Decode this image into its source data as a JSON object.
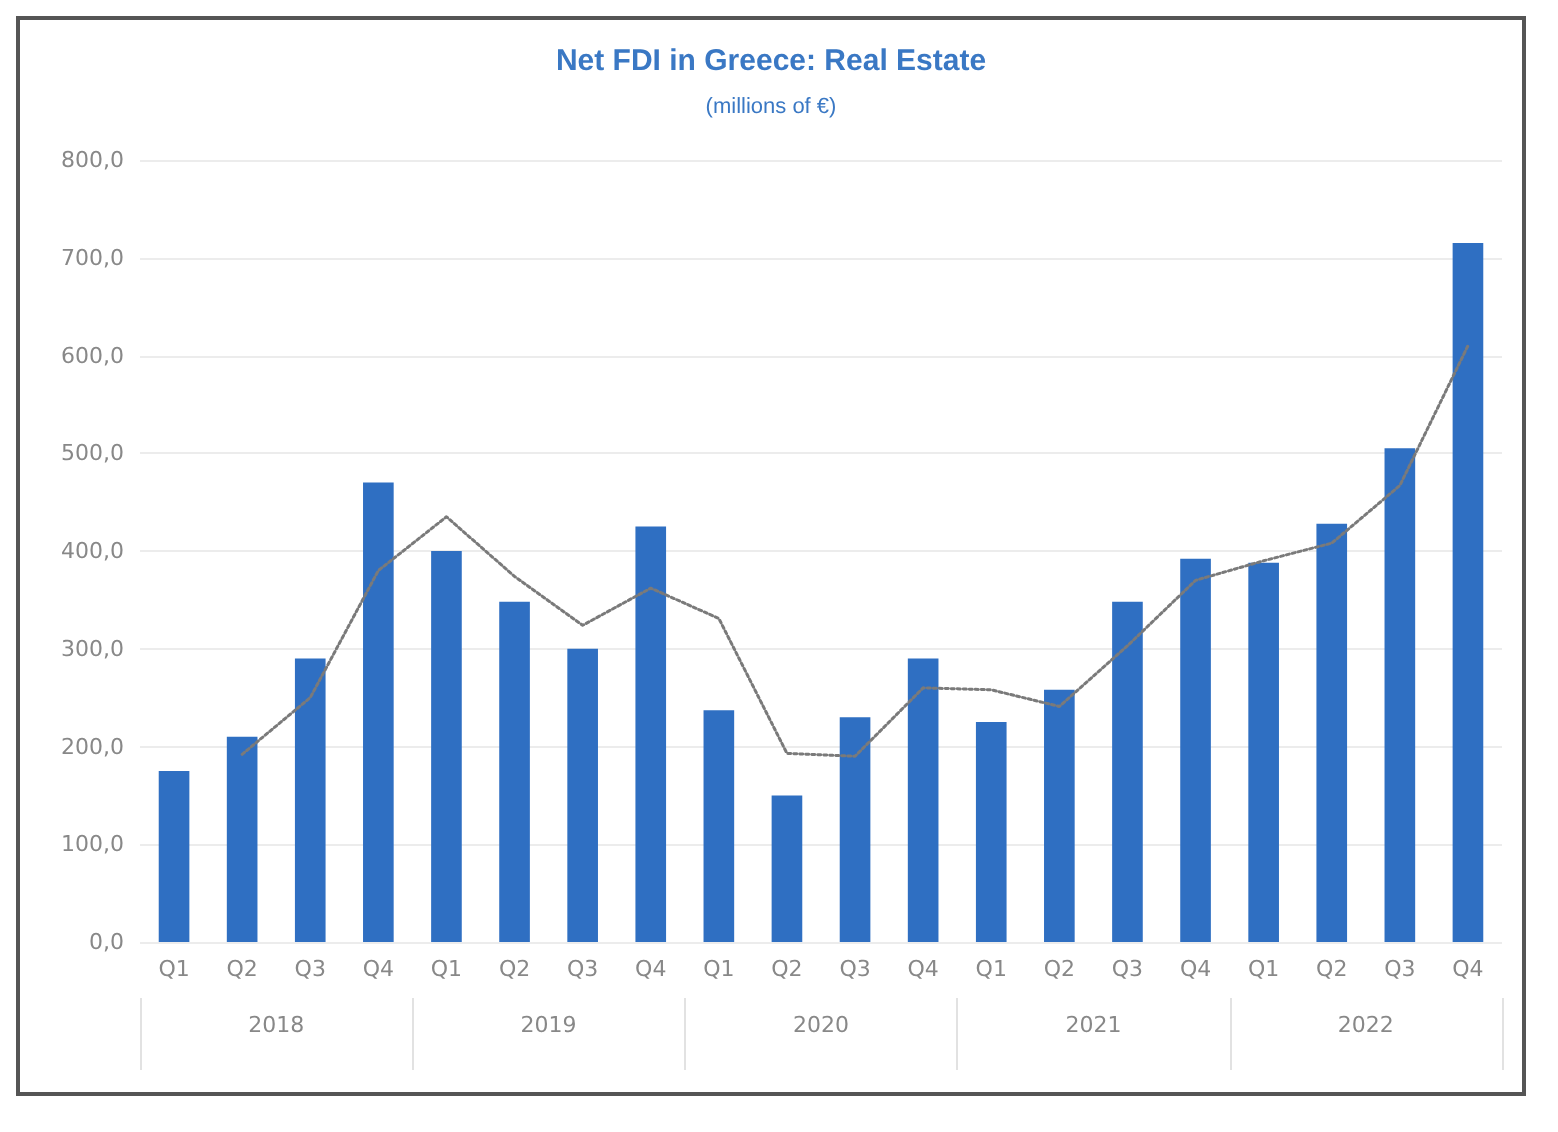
{
  "chart_data": {
    "type": "bar",
    "title": "Net FDI in Greece: Real Estate",
    "subtitle": "(millions of €)",
    "categories": [
      "Q1",
      "Q2",
      "Q3",
      "Q4",
      "Q1",
      "Q2",
      "Q3",
      "Q4",
      "Q1",
      "Q2",
      "Q3",
      "Q4",
      "Q1",
      "Q2",
      "Q3",
      "Q4",
      "Q1",
      "Q2",
      "Q3",
      "Q4"
    ],
    "annotations": [
      "2018",
      "2019",
      "2020",
      "2021",
      "2022"
    ],
    "series": [
      {
        "color": "#2f6fc2",
        "values": [
          175,
          210,
          290,
          470,
          400,
          348,
          300,
          425,
          237,
          150,
          230,
          290,
          225,
          258,
          348,
          392,
          388,
          428,
          505,
          715
        ]
      },
      {
        "type": "line",
        "color": "#7a7a7a",
        "line_style": "dotted",
        "marker": "none",
        "values": [
          null,
          192,
          250,
          380,
          435,
          374,
          324,
          362,
          331,
          193,
          190,
          260,
          258,
          241,
          303,
          370,
          390,
          408,
          467,
          610
        ]
      }
    ],
    "ylim": [
      0,
      800
    ],
    "yticks": [
      {
        "value": 0,
        "label": "0,0"
      },
      {
        "value": 100,
        "label": "100,0"
      },
      {
        "value": 200,
        "label": "200,0"
      },
      {
        "value": 300,
        "label": "300,0"
      },
      {
        "value": 400,
        "label": "400,0"
      },
      {
        "value": 500,
        "label": "500,0"
      },
      {
        "value": 600,
        "label": "600,0"
      },
      {
        "value": 700,
        "label": "700,0"
      },
      {
        "value": 800,
        "label": "800,0"
      }
    ],
    "grid": "y"
  }
}
